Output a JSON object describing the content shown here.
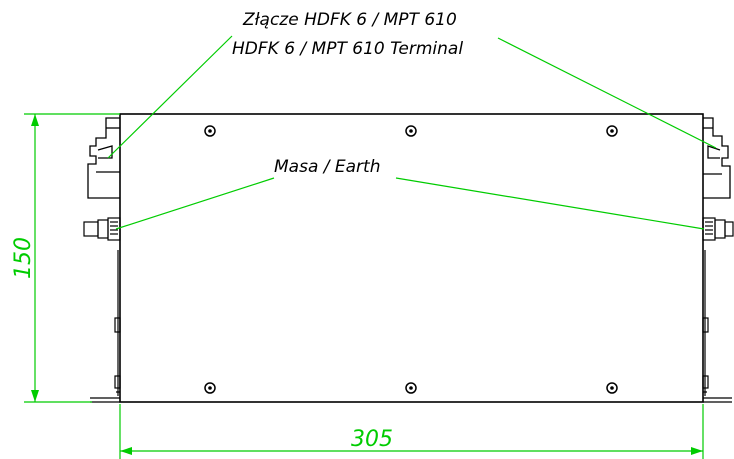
{
  "labels": {
    "terminal_pl": "Złącze HDFK 6 / MPT 610",
    "terminal_en": "HDFK 6 / MPT 610 Terminal",
    "earth": "Masa / Earth"
  },
  "dimensions": {
    "height": "150",
    "width": "305"
  },
  "colors": {
    "outline": "#000000",
    "dimension": "#00cc00",
    "leader": "#00cc00",
    "background": "#ffffff"
  }
}
